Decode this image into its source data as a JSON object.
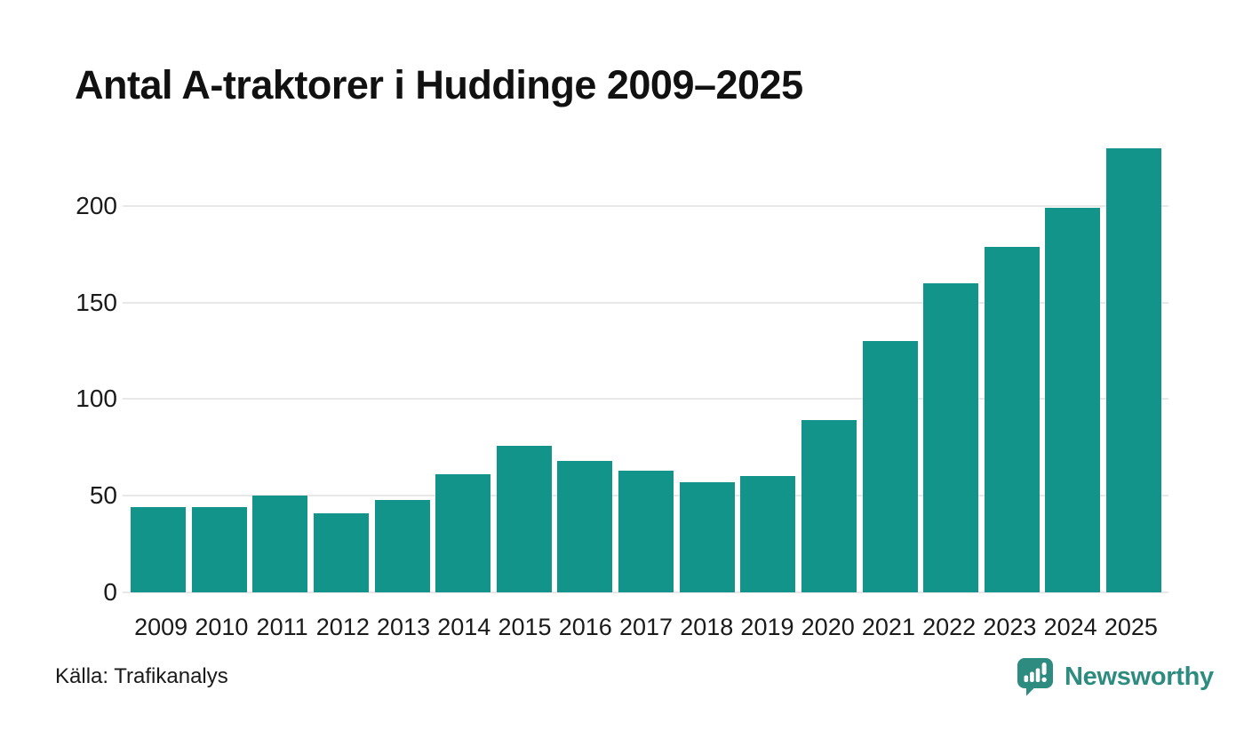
{
  "title": "Antal A-traktorer i Huddinge 2009–2025",
  "source": "Källa: Trafikanalys",
  "branding": {
    "wordmark": "Newsworthy",
    "icon": "speech-bubble-bar-chart-exclamation"
  },
  "colors": {
    "bar": "#12948A",
    "gridline": "#e8e8e8",
    "title": "#111111",
    "axis_label": "#1a1a1a",
    "logo": "#2E8B80"
  },
  "chart_data": {
    "type": "bar",
    "title": "Antal A-traktorer i Huddinge 2009–2025",
    "categories": [
      "2009",
      "2010",
      "2011",
      "2012",
      "2013",
      "2014",
      "2015",
      "2016",
      "2017",
      "2018",
      "2019",
      "2020",
      "2021",
      "2022",
      "2023",
      "2024",
      "2025"
    ],
    "values": [
      44,
      44,
      50,
      41,
      48,
      61,
      76,
      68,
      63,
      57,
      60,
      89,
      130,
      160,
      179,
      199,
      230
    ],
    "xlabel": "",
    "ylabel": "",
    "ylim": [
      0,
      233
    ],
    "yticks": [
      0,
      50,
      100,
      150,
      200
    ],
    "grid": true,
    "legend": false,
    "bar_color": "#12948A",
    "source": "Källa: Trafikanalys"
  }
}
